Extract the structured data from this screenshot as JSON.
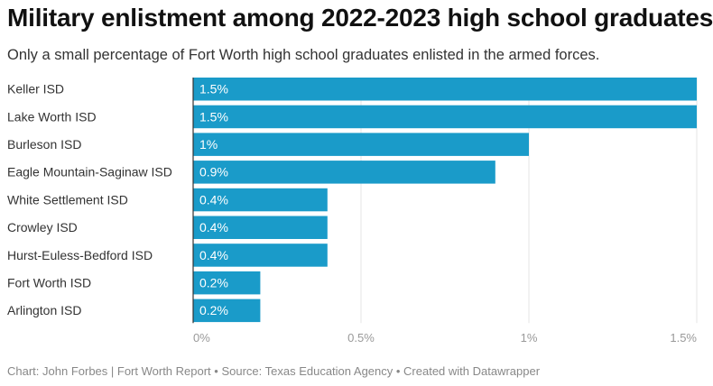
{
  "title": "Military enlistment among 2022-2023 high school graduates",
  "subtitle": "Only a small percentage of Fort Worth high school graduates enlisted in the armed forces.",
  "footer": "Chart: John Forbes | Fort Worth Report • Source: Texas Education Agency • Created with Datawrapper",
  "colors": {
    "bar": "#1a9bc9",
    "grid": "#e6e6e6",
    "axis": "#333333",
    "tick": "#999999",
    "bar_label": "#ffffff"
  },
  "chart_data": {
    "type": "bar",
    "orientation": "horizontal",
    "title": "Military enlistment among 2022-2023 high school graduates",
    "xlabel": "",
    "ylabel": "",
    "xlim": [
      0,
      1.5
    ],
    "grid": true,
    "categories": [
      "Keller ISD",
      "Lake Worth ISD",
      "Burleson ISD",
      "Eagle Mountain-Saginaw ISD",
      "White Settlement ISD",
      "Crowley ISD",
      "Hurst-Euless-Bedford ISD",
      "Fort Worth ISD",
      "Arlington ISD"
    ],
    "values": [
      1.5,
      1.5,
      1.0,
      0.9,
      0.4,
      0.4,
      0.4,
      0.2,
      0.2
    ],
    "value_labels": [
      "1.5%",
      "1.5%",
      "1%",
      "0.9%",
      "0.4%",
      "0.4%",
      "0.4%",
      "0.2%",
      "0.2%"
    ],
    "ticks": [
      0,
      0.5,
      1,
      1.5
    ],
    "tick_labels": [
      "0%",
      "0.5%",
      "1%",
      "1.5%"
    ]
  }
}
